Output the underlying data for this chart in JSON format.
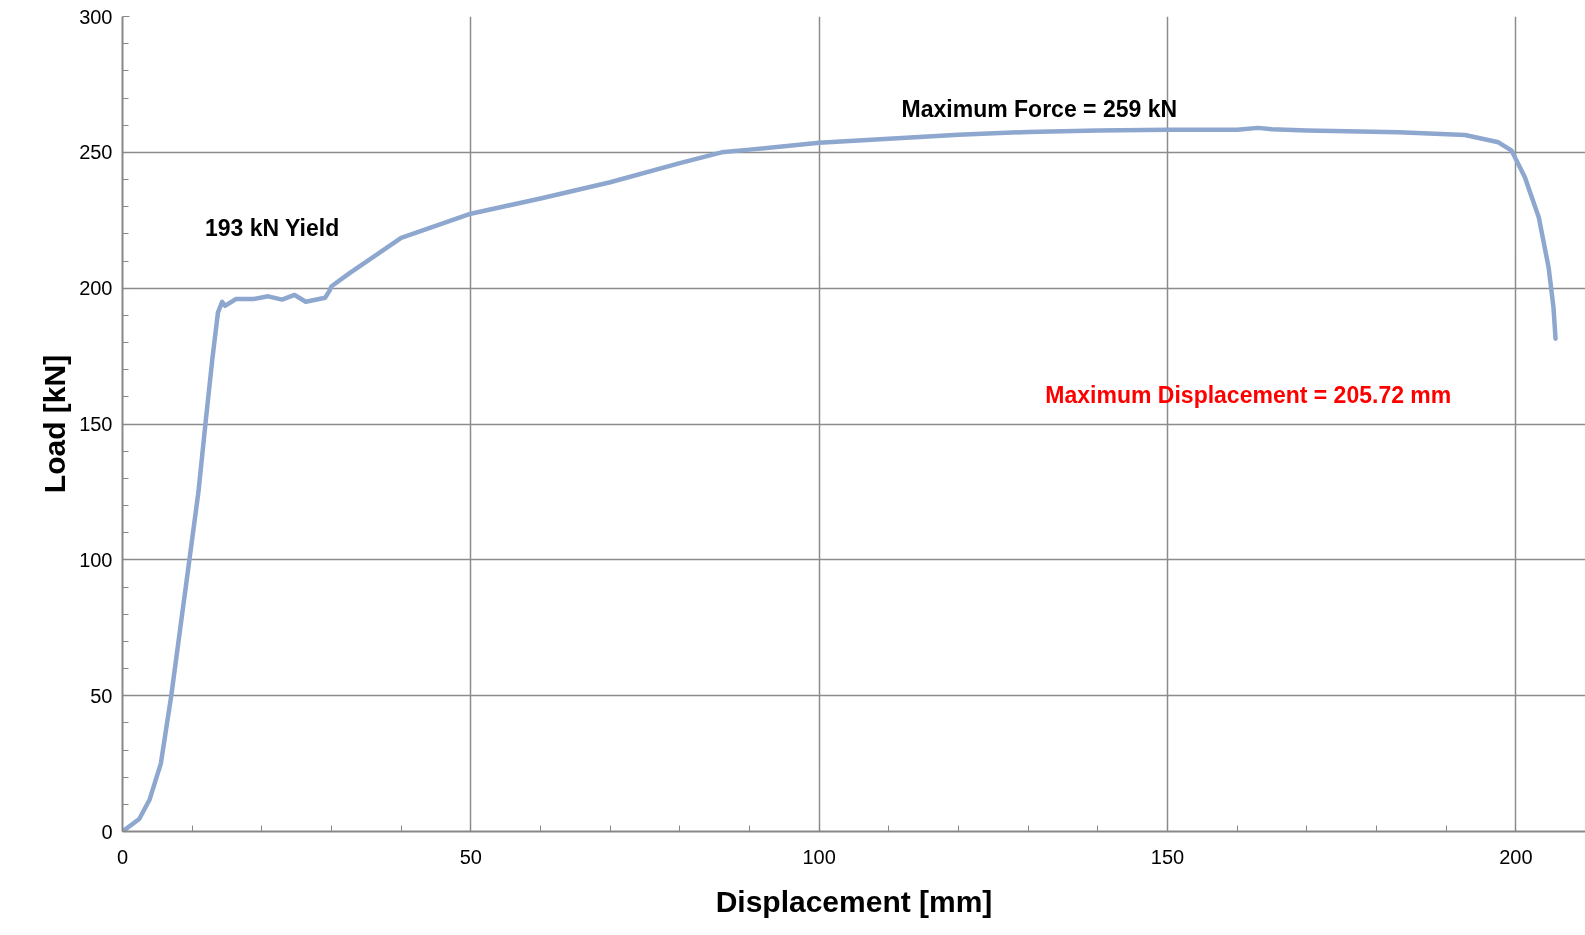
{
  "chart_data": {
    "type": "line",
    "xlabel": "Displacement [mm]",
    "ylabel": "Load [kN]",
    "x": [
      0,
      2.4,
      3.9,
      5.5,
      7.0,
      8.3,
      9.6,
      10.9,
      11.9,
      12.9,
      13.7,
      14.3,
      14.7,
      16.3,
      18.8,
      20.9,
      22.9,
      24.7,
      26.3,
      29.1,
      29.7,
      30,
      32.7,
      40,
      50,
      60,
      70,
      80,
      86,
      90,
      100,
      110,
      120,
      130,
      140,
      150,
      160,
      163,
      165,
      170,
      183.2,
      192.7,
      197.5,
      199.4,
      201.3,
      203.3,
      204.7,
      205.4,
      205.7
    ],
    "series": [
      {
        "color": "#8ea7cf",
        "values": [
          0,
          4.6,
          11.8,
          25,
          50,
          75,
          100,
          125,
          150,
          174,
          191,
          195,
          193.5,
          196,
          196,
          197,
          195.8,
          197.5,
          195,
          196.5,
          199,
          200.7,
          205.7,
          218.5,
          227.4,
          233,
          239,
          246,
          250,
          251,
          253.5,
          255,
          256.5,
          257.5,
          258,
          258.3,
          258.3,
          259,
          258.5,
          258,
          257.4,
          256.4,
          253.7,
          250.6,
          240.8,
          226,
          207.7,
          193,
          181.4
        ]
      }
    ],
    "xlim": [
      0,
      210
    ],
    "ylim": [
      0,
      300
    ],
    "xticks": [
      0,
      {
        "value": 10,
        "label": null
      },
      {
        "value": 20,
        "label": null
      },
      {
        "value": 30,
        "label": null
      },
      {
        "value": 40,
        "label": null
      },
      50,
      {
        "value": 60,
        "label": null
      },
      {
        "value": 70,
        "label": null
      },
      {
        "value": 80,
        "label": null
      },
      {
        "value": 90,
        "label": null
      },
      100,
      {
        "value": 110,
        "label": null
      },
      {
        "value": 120,
        "label": null
      },
      {
        "value": 130,
        "label": null
      },
      {
        "value": 140,
        "label": null
      },
      150,
      {
        "value": 160,
        "label": null
      },
      {
        "value": 170,
        "label": null
      },
      {
        "value": 180,
        "label": null
      },
      {
        "value": 190,
        "label": null
      },
      200
    ],
    "yticks": [
      0,
      {
        "value": 10,
        "label": null
      },
      {
        "value": 20,
        "label": null
      },
      {
        "value": 30,
        "label": null
      },
      {
        "value": 40,
        "label": null
      },
      50,
      {
        "value": 60,
        "label": null
      },
      {
        "value": 70,
        "label": null
      },
      {
        "value": 80,
        "label": null
      },
      {
        "value": 90,
        "label": null
      },
      100,
      {
        "value": 110,
        "label": null
      },
      {
        "value": 120,
        "label": null
      },
      {
        "value": 130,
        "label": null
      },
      {
        "value": 140,
        "label": null
      },
      150,
      {
        "value": 160,
        "label": null
      },
      {
        "value": 170,
        "label": null
      },
      {
        "value": 180,
        "label": null
      },
      {
        "value": 190,
        "label": null
      },
      200,
      {
        "value": 210,
        "label": null
      },
      {
        "value": 220,
        "label": null
      },
      {
        "value": 230,
        "label": null
      },
      {
        "value": 240,
        "label": null
      },
      250,
      {
        "value": 260,
        "label": null
      },
      {
        "value": 270,
        "label": null
      },
      {
        "value": 280,
        "label": null
      },
      {
        "value": 290,
        "label": null
      },
      300
    ],
    "grid": true,
    "marker": "none",
    "line_style": "solid",
    "annotations": [
      "193 kN Yield",
      "Maximum Force = 259 kN",
      "Maximum Displacement = 205.72 mm"
    ]
  }
}
